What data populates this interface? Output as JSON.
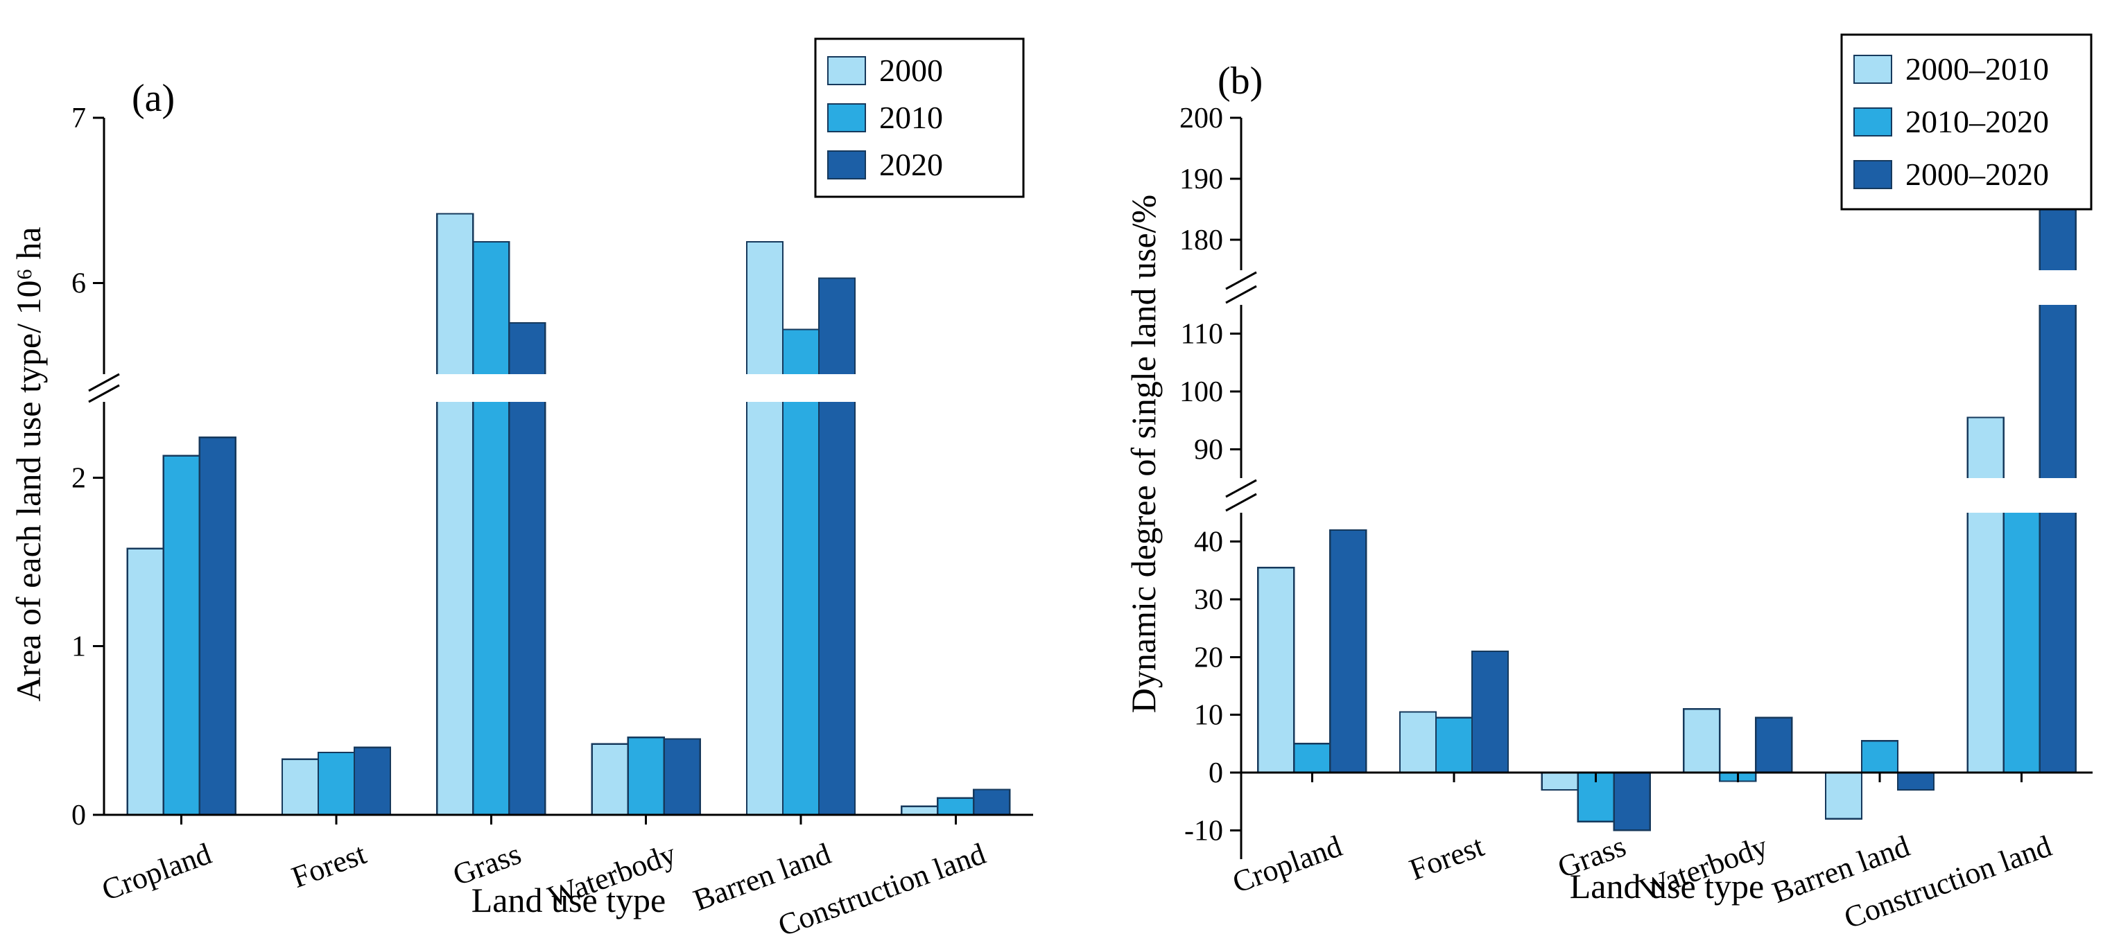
{
  "page": {
    "background": "#ffffff"
  },
  "chart_data": [
    {
      "type": "bar",
      "panel_label": "(a)",
      "xlabel": "Land use type",
      "ylabel": "Area of each land use type/ 10⁶ ha",
      "categories": [
        "Cropland",
        "Forest",
        "Grass",
        "Waterbody",
        "Barren land",
        "Construction land"
      ],
      "series": [
        {
          "name": "2000",
          "color": "#a8def5",
          "values": [
            1.58,
            0.33,
            6.42,
            0.42,
            6.25,
            0.05
          ]
        },
        {
          "name": "2010",
          "color": "#2aabe2",
          "values": [
            2.13,
            0.37,
            6.25,
            0.46,
            5.72,
            0.1
          ]
        },
        {
          "name": "2020",
          "color": "#1c5fa6",
          "values": [
            2.24,
            0.4,
            5.76,
            0.45,
            6.03,
            0.15
          ]
        }
      ],
      "bar_outline_color": "#16395c",
      "axis_color": "#000000",
      "baseline": 0,
      "ylim": [
        0,
        7
      ],
      "grid": false,
      "axis_break": true,
      "segments": [
        {
          "range": [
            0,
            2.45
          ],
          "ticks": [
            0,
            1,
            2
          ]
        },
        {
          "range": [
            5.45,
            7
          ],
          "ticks": [
            6,
            7
          ]
        }
      ],
      "legend": {
        "position": "top-right",
        "entries": [
          "2000",
          "2010",
          "2020"
        ]
      }
    },
    {
      "type": "bar",
      "panel_label": "(b)",
      "xlabel": "Land use type",
      "ylabel": "Dynamic degree of single land use/%",
      "categories": [
        "Cropland",
        "Forest",
        "Grass",
        "Waterbody",
        "Barren land",
        "Construction land"
      ],
      "series": [
        {
          "name": "2000–2010",
          "color": "#a8def5",
          "values": [
            35.5,
            10.5,
            -3,
            11,
            -8,
            95.5
          ]
        },
        {
          "name": "2010–2020",
          "color": "#2aabe2",
          "values": [
            5,
            9.5,
            -8.5,
            -1.5,
            5.5,
            46
          ]
        },
        {
          "name": "2000–2020",
          "color": "#1c5fa6",
          "values": [
            42,
            21,
            -10,
            9.5,
            -3,
            187
          ]
        }
      ],
      "bar_outline_color": "#16395c",
      "axis_color": "#000000",
      "baseline": 0,
      "ylim": [
        -15,
        200
      ],
      "grid": false,
      "axis_break": true,
      "segments": [
        {
          "range": [
            -15,
            45
          ],
          "ticks": [
            -10,
            0,
            10,
            20,
            30,
            40
          ]
        },
        {
          "range": [
            85,
            115
          ],
          "ticks": [
            90,
            100,
            110
          ]
        },
        {
          "range": [
            175,
            200
          ],
          "ticks": [
            180,
            190,
            200
          ]
        }
      ],
      "legend": {
        "position": "top-right",
        "entries": [
          "2000–2010",
          "2010–2020",
          "2000–2020"
        ]
      }
    }
  ]
}
